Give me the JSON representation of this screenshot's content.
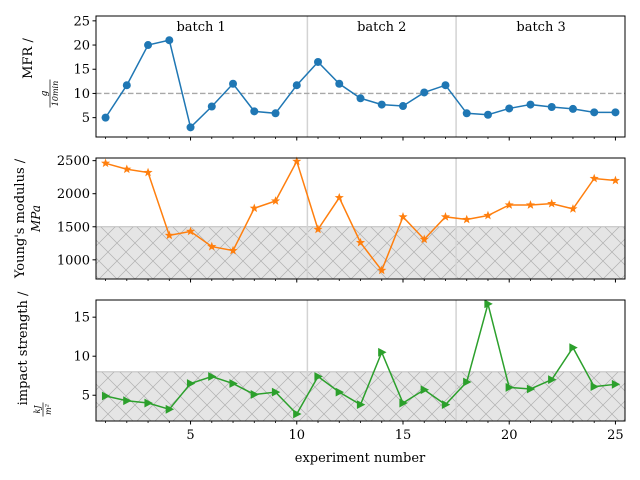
{
  "chart_data": {
    "type": "line",
    "xlabel": "experiment number",
    "x": [
      1,
      2,
      3,
      4,
      5,
      6,
      7,
      8,
      9,
      10,
      11,
      12,
      13,
      14,
      15,
      16,
      17,
      18,
      19,
      20,
      21,
      22,
      23,
      24,
      25
    ],
    "x_ticks": [
      5,
      10,
      15,
      20,
      25
    ],
    "xlim": [
      0.55,
      25.45
    ],
    "batch_boundaries": [
      10.5,
      17.5
    ],
    "batches": [
      {
        "label": "batch 1",
        "center": 5.5
      },
      {
        "label": "batch 2",
        "center": 14.0
      },
      {
        "label": "batch 3",
        "center": 21.5
      }
    ],
    "panels": [
      {
        "name": "mfr",
        "ylabel_text": "MFR /",
        "ylabel_unit_num": "g",
        "ylabel_unit_den": "10min",
        "color": "#1f77b4",
        "marker": "circle",
        "ylim": [
          1.0,
          26.0
        ],
        "yticks": [
          5,
          10,
          15,
          20,
          25
        ],
        "reference_line": 10,
        "values": [
          5.0,
          11.7,
          20.0,
          21.0,
          3.0,
          7.3,
          12.0,
          6.3,
          5.9,
          11.7,
          16.5,
          12.0,
          9.0,
          7.7,
          7.4,
          10.2,
          11.7,
          5.9,
          5.6,
          6.9,
          7.7,
          7.2,
          6.8,
          6.1,
          6.1
        ]
      },
      {
        "name": "youngs",
        "ylabel_text": "Young's modulus /",
        "ylabel_unit": "MPa",
        "color": "#ff7f0e",
        "marker": "star",
        "ylim": [
          710,
          2540
        ],
        "yticks": [
          1000,
          1500,
          2000,
          2500
        ],
        "shaded_region": [
          710,
          1500
        ],
        "values": [
          2460,
          2370,
          2320,
          1370,
          1430,
          1200,
          1140,
          1780,
          1890,
          2490,
          1460,
          1940,
          1260,
          840,
          1650,
          1310,
          1650,
          1610,
          1670,
          1830,
          1830,
          1850,
          1770,
          2230,
          2200
        ]
      },
      {
        "name": "impact",
        "ylabel_text": "impact strength /",
        "ylabel_unit_num": "kJ",
        "ylabel_unit_den": "m²",
        "color": "#2ca02c",
        "marker": "triangle-right",
        "ylim": [
          1.7,
          17.2
        ],
        "yticks": [
          5,
          10,
          15
        ],
        "shaded_region": [
          1.7,
          8.0
        ],
        "values": [
          4.9,
          4.3,
          4.0,
          3.2,
          6.5,
          7.4,
          6.5,
          5.1,
          5.4,
          2.6,
          7.4,
          5.4,
          3.8,
          10.5,
          4.0,
          5.7,
          3.8,
          6.7,
          16.7,
          6.0,
          5.8,
          7.0,
          11.1,
          6.1,
          6.4
        ]
      }
    ]
  }
}
